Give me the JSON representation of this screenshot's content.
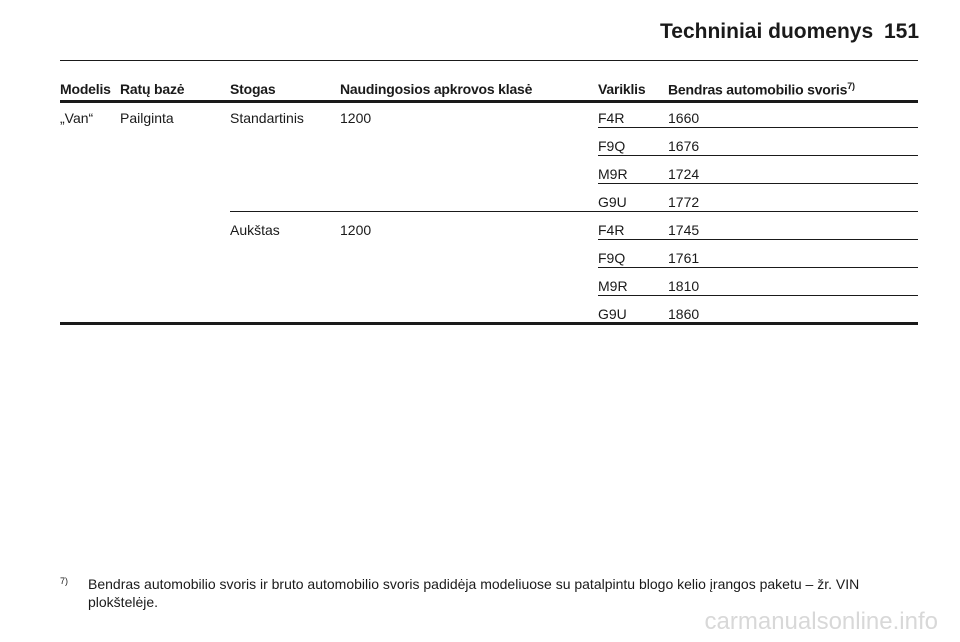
{
  "header": {
    "title": "Techniniai duomenys",
    "page": "151"
  },
  "table": {
    "columns": [
      "Modelis",
      "Ratų bazė",
      "Stogas",
      "Naudingosios apkrovos klasė",
      "Variklis",
      "Bendras automobilio svoris"
    ],
    "column_note": "7)",
    "model": "„Van“",
    "wheelbase": "Pailginta",
    "groups": [
      {
        "roof": "Standartinis",
        "payload": 1200,
        "engines": [
          {
            "engine": "F4R",
            "weight": 1660
          },
          {
            "engine": "F9Q",
            "weight": 1676
          },
          {
            "engine": "M9R",
            "weight": 1724
          },
          {
            "engine": "G9U",
            "weight": 1772
          }
        ]
      },
      {
        "roof": "Aukštas",
        "payload": 1200,
        "engines": [
          {
            "engine": "F4R",
            "weight": 1745
          },
          {
            "engine": "F9Q",
            "weight": 1761
          },
          {
            "engine": "M9R",
            "weight": 1810
          },
          {
            "engine": "G9U",
            "weight": 1860
          }
        ]
      }
    ]
  },
  "footnote": {
    "mark": "7)",
    "text": "Bendras automobilio svoris ir bruto automobilio svoris padidėja modeliuose su patalpintu blogo kelio įrangos paketu – žr. VIN plokštelėje."
  },
  "watermark": "carmanualsonline.info"
}
